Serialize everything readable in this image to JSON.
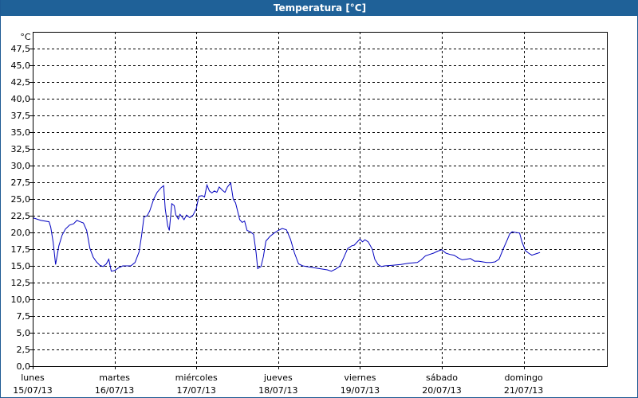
{
  "window": {
    "title": "Temperatura [°C]"
  },
  "chart_data": {
    "type": "line",
    "title": "Temperatura [°C]",
    "ylabel": "°C",
    "ylim": [
      0,
      50
    ],
    "y_ticks": [
      "0,0",
      "2,5",
      "5,0",
      "7,5",
      "10,0",
      "12,5",
      "15,0",
      "17,5",
      "20,0",
      "22,5",
      "25,0",
      "27,5",
      "30,0",
      "32,5",
      "35,0",
      "37,5",
      "40,0",
      "42,5",
      "45,0",
      "47,5"
    ],
    "x_tick_days": [
      "lunes",
      "martes",
      "miércoles",
      "jueves",
      "viernes",
      "sábado",
      "domingo"
    ],
    "x_tick_dates": [
      "15/07/13",
      "16/07/13",
      "17/07/13",
      "18/07/13",
      "19/07/13",
      "20/07/13",
      "21/07/13"
    ],
    "x_unit": "days from lunes 15/07/13 00:00",
    "xlim": [
      0,
      7
    ],
    "grid": true,
    "colors": {
      "line": "#0000c0",
      "grid": "#000000",
      "titlebar": "#1f6198"
    },
    "series": [
      {
        "values": [
          [
            0.0,
            22.2
          ],
          [
            0.1,
            21.8
          ],
          [
            0.2,
            21.6
          ],
          [
            0.22,
            20.8
          ],
          [
            0.25,
            18.5
          ],
          [
            0.28,
            15.2
          ],
          [
            0.32,
            18.0
          ],
          [
            0.36,
            19.6
          ],
          [
            0.4,
            20.5
          ],
          [
            0.45,
            21.1
          ],
          [
            0.5,
            21.3
          ],
          [
            0.54,
            21.8
          ],
          [
            0.58,
            21.6
          ],
          [
            0.62,
            21.4
          ],
          [
            0.66,
            20.3
          ],
          [
            0.7,
            17.6
          ],
          [
            0.74,
            16.3
          ],
          [
            0.78,
            15.6
          ],
          [
            0.82,
            15.1
          ],
          [
            0.86,
            14.9
          ],
          [
            0.9,
            15.3
          ],
          [
            0.93,
            16.0
          ],
          [
            0.96,
            14.2
          ],
          [
            1.0,
            14.3
          ],
          [
            1.05,
            14.7
          ],
          [
            1.1,
            15.0
          ],
          [
            1.15,
            15.0
          ],
          [
            1.2,
            15.0
          ],
          [
            1.25,
            15.5
          ],
          [
            1.3,
            17.1
          ],
          [
            1.33,
            19.5
          ],
          [
            1.36,
            22.3
          ],
          [
            1.4,
            22.5
          ],
          [
            1.43,
            23.2
          ],
          [
            1.48,
            25.0
          ],
          [
            1.52,
            26.0
          ],
          [
            1.57,
            26.7
          ],
          [
            1.6,
            27.0
          ],
          [
            1.62,
            23.5
          ],
          [
            1.65,
            21.0
          ],
          [
            1.67,
            20.3
          ],
          [
            1.7,
            24.3
          ],
          [
            1.73,
            24.0
          ],
          [
            1.75,
            22.6
          ],
          [
            1.78,
            22.0
          ],
          [
            1.8,
            22.7
          ],
          [
            1.82,
            22.4
          ],
          [
            1.85,
            21.9
          ],
          [
            1.88,
            22.6
          ],
          [
            1.92,
            22.2
          ],
          [
            1.96,
            22.6
          ],
          [
            2.0,
            23.6
          ],
          [
            2.03,
            25.4
          ],
          [
            2.07,
            25.5
          ],
          [
            2.1,
            25.3
          ],
          [
            2.13,
            27.1
          ],
          [
            2.16,
            26.2
          ],
          [
            2.19,
            25.9
          ],
          [
            2.22,
            26.2
          ],
          [
            2.25,
            26.0
          ],
          [
            2.28,
            26.8
          ],
          [
            2.32,
            26.3
          ],
          [
            2.35,
            26.0
          ],
          [
            2.38,
            26.8
          ],
          [
            2.42,
            27.4
          ],
          [
            2.45,
            25.0
          ],
          [
            2.48,
            24.4
          ],
          [
            2.5,
            23.4
          ],
          [
            2.53,
            21.9
          ],
          [
            2.56,
            21.5
          ],
          [
            2.59,
            21.7
          ],
          [
            2.62,
            20.3
          ],
          [
            2.66,
            20.1
          ],
          [
            2.7,
            19.7
          ],
          [
            2.73,
            17.0
          ],
          [
            2.75,
            14.6
          ],
          [
            2.79,
            14.9
          ],
          [
            2.82,
            16.4
          ],
          [
            2.85,
            18.7
          ],
          [
            2.9,
            19.4
          ],
          [
            2.95,
            19.9
          ],
          [
            3.0,
            20.3
          ],
          [
            3.05,
            20.6
          ],
          [
            3.1,
            20.4
          ],
          [
            3.15,
            19.0
          ],
          [
            3.2,
            16.9
          ],
          [
            3.25,
            15.3
          ],
          [
            3.3,
            15.0
          ],
          [
            3.4,
            14.8
          ],
          [
            3.5,
            14.6
          ],
          [
            3.6,
            14.4
          ],
          [
            3.65,
            14.2
          ],
          [
            3.7,
            14.5
          ],
          [
            3.75,
            14.9
          ],
          [
            3.8,
            16.2
          ],
          [
            3.85,
            17.6
          ],
          [
            3.9,
            18.0
          ],
          [
            3.93,
            18.1
          ],
          [
            3.96,
            18.5
          ],
          [
            4.0,
            19.0
          ],
          [
            4.03,
            18.6
          ],
          [
            4.06,
            18.9
          ],
          [
            4.1,
            18.6
          ],
          [
            4.15,
            17.5
          ],
          [
            4.18,
            16.0
          ],
          [
            4.22,
            15.2
          ],
          [
            4.26,
            14.9
          ],
          [
            4.3,
            15.0
          ],
          [
            4.4,
            15.1
          ],
          [
            4.5,
            15.2
          ],
          [
            4.6,
            15.4
          ],
          [
            4.7,
            15.5
          ],
          [
            4.75,
            15.9
          ],
          [
            4.8,
            16.5
          ],
          [
            4.85,
            16.7
          ],
          [
            4.9,
            16.9
          ],
          [
            4.95,
            17.2
          ],
          [
            5.0,
            17.4
          ],
          [
            5.05,
            16.9
          ],
          [
            5.1,
            16.7
          ],
          [
            5.15,
            16.6
          ],
          [
            5.2,
            16.2
          ],
          [
            5.25,
            15.9
          ],
          [
            5.3,
            16.0
          ],
          [
            5.35,
            16.1
          ],
          [
            5.4,
            15.7
          ],
          [
            5.45,
            15.7
          ],
          [
            5.5,
            15.6
          ],
          [
            5.55,
            15.5
          ],
          [
            5.6,
            15.5
          ],
          [
            5.65,
            15.6
          ],
          [
            5.7,
            16.0
          ],
          [
            5.75,
            17.5
          ],
          [
            5.8,
            18.9
          ],
          [
            5.83,
            19.8
          ],
          [
            5.86,
            20.1
          ],
          [
            5.9,
            20.0
          ],
          [
            5.95,
            19.9
          ],
          [
            5.98,
            18.6
          ],
          [
            6.02,
            17.3
          ],
          [
            6.06,
            16.9
          ],
          [
            6.1,
            16.6
          ],
          [
            6.15,
            16.8
          ],
          [
            6.2,
            17.0
          ]
        ]
      }
    ]
  }
}
